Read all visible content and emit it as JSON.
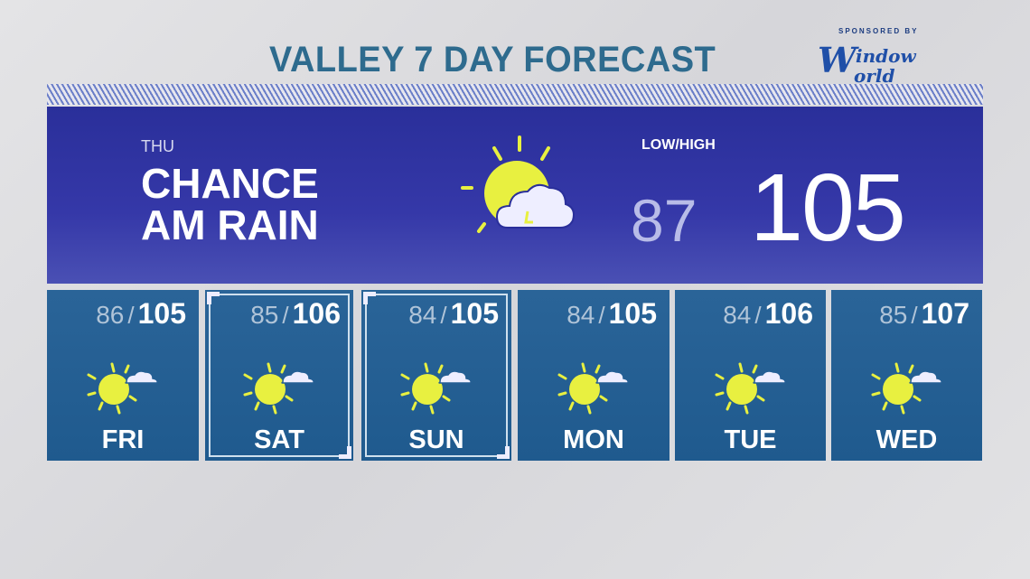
{
  "title": "VALLEY 7 DAY FORECAST",
  "sponsor": {
    "label": "SPONSORED BY",
    "logo_text": "Window World"
  },
  "today": {
    "day": "THU",
    "condition_line1": "CHANCE",
    "condition_line2": "AM RAIN",
    "low_high_label": "LOW/HIGH",
    "low": "87",
    "high": "105",
    "icon": "sun-cloud-storm-icon"
  },
  "forecast": [
    {
      "day": "FRI",
      "low": "86",
      "high": "105",
      "icon": "mostly-sunny-icon"
    },
    {
      "day": "SAT",
      "low": "85",
      "high": "106",
      "icon": "mostly-sunny-icon"
    },
    {
      "day": "SUN",
      "low": "84",
      "high": "105",
      "icon": "mostly-sunny-icon"
    },
    {
      "day": "MON",
      "low": "84",
      "high": "105",
      "icon": "mostly-sunny-icon"
    },
    {
      "day": "TUE",
      "low": "84",
      "high": "106",
      "icon": "mostly-sunny-icon"
    },
    {
      "day": "WED",
      "low": "85",
      "high": "107",
      "icon": "mostly-sunny-icon"
    }
  ],
  "separator": "/",
  "colors": {
    "title": "#2e6b8e",
    "panel": "#2a2f9a",
    "card": "#245f94",
    "sun": "#e8f040"
  }
}
